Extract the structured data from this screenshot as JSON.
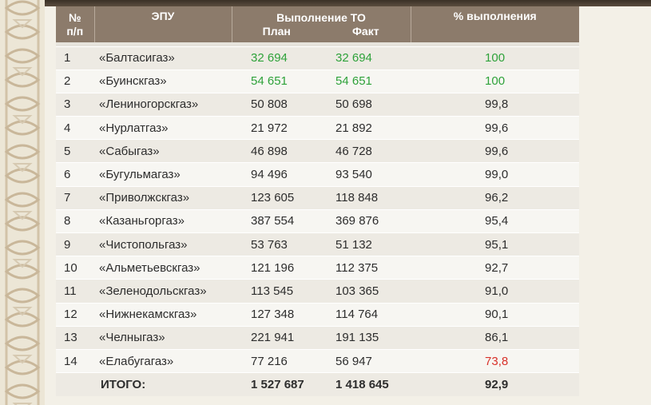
{
  "header": {
    "col_num": "№ п/п",
    "col_num_l1": "№",
    "col_num_l2": "п/п",
    "col_epu": "ЭПУ",
    "col_to": "Выполнение ТО",
    "col_plan": "План",
    "col_fact": "Факт",
    "col_pct": "% выполнения"
  },
  "rows": [
    {
      "n": "1",
      "name": "«Балтасигаз»",
      "plan": "32 694",
      "fact": "32 694",
      "pct": "100",
      "highlight": "green"
    },
    {
      "n": "2",
      "name": "«Буинскгаз»",
      "plan": "54 651",
      "fact": "54 651",
      "pct": "100",
      "highlight": "green"
    },
    {
      "n": "3",
      "name": "«Лениногорскгаз»",
      "plan": "50 808",
      "fact": "50 698",
      "pct": "99,8",
      "highlight": ""
    },
    {
      "n": "4",
      "name": "«Нурлатгаз»",
      "plan": "21 972",
      "fact": "21 892",
      "pct": "99,6",
      "highlight": ""
    },
    {
      "n": "5",
      "name": "«Сабыгаз»",
      "plan": "46 898",
      "fact": "46 728",
      "pct": "99,6",
      "highlight": ""
    },
    {
      "n": "6",
      "name": "«Бугульмагаз»",
      "plan": "94 496",
      "fact": "93 540",
      "pct": "99,0",
      "highlight": ""
    },
    {
      "n": "7",
      "name": "«Приволжскгаз»",
      "plan": "123 605",
      "fact": "118 848",
      "pct": "96,2",
      "highlight": ""
    },
    {
      "n": "8",
      "name": "«Казаньгоргаз»",
      "plan": "387 554",
      "fact": "369 876",
      "pct": "95,4",
      "highlight": ""
    },
    {
      "n": "9",
      "name": "«Чистопольгаз»",
      "plan": "53 763",
      "fact": "51 132",
      "pct": "95,1",
      "highlight": ""
    },
    {
      "n": "10",
      "name": "«Альметьевскгаз»",
      "plan": "121 196",
      "fact": "112 375",
      "pct": "92,7",
      "highlight": ""
    },
    {
      "n": "11",
      "name": "«Зеленодольскгаз»",
      "plan": "113 545",
      "fact": "103 365",
      "pct": "91,0",
      "highlight": ""
    },
    {
      "n": "12",
      "name": "«Нижнекамскгаз»",
      "plan": "127 348",
      "fact": "114 764",
      "pct": "90,1",
      "highlight": ""
    },
    {
      "n": "13",
      "name": "«Челныгаз»",
      "plan": "221 941",
      "fact": "191 135",
      "pct": "86,1",
      "highlight": ""
    },
    {
      "n": "14",
      "name": "«Елабугагаз»",
      "plan": "77 216",
      "fact": "56 947",
      "pct": "73,8",
      "highlight": "red"
    }
  ],
  "total": {
    "label": "ИТОГО:",
    "plan": "1 527 687",
    "fact": "1 418 645",
    "pct": "92,9"
  },
  "colors": {
    "header_bg": "#8c7b6b",
    "green": "#2ea23a",
    "red": "#d8312a",
    "ornament": "#c9b79a"
  }
}
